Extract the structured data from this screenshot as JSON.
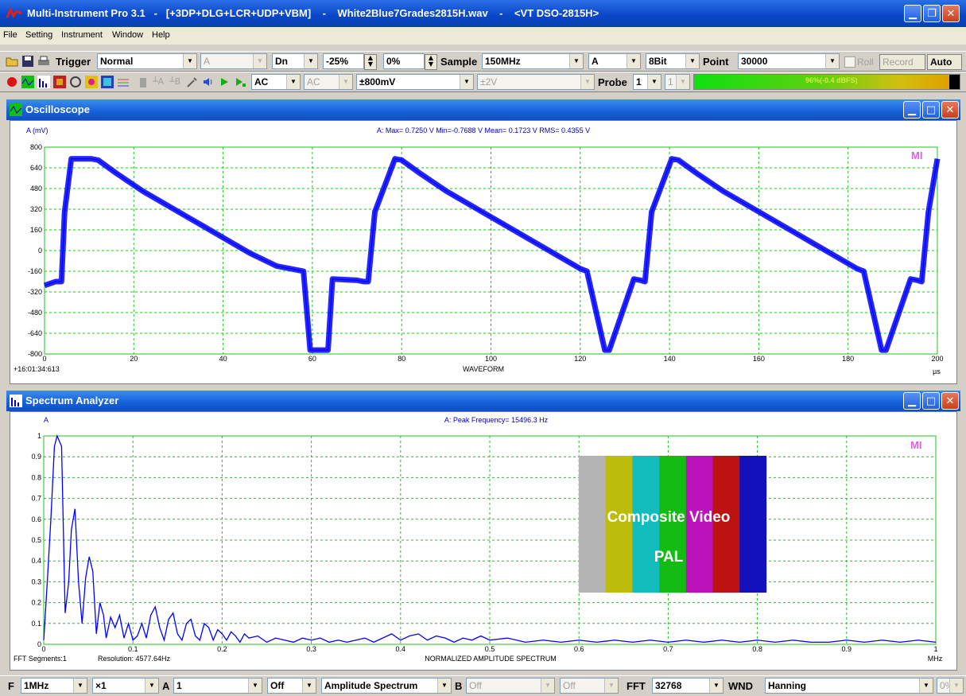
{
  "window": {
    "title": "Multi-Instrument Pro 3.1   -   [+3DP+DLG+LCR+UDP+VBM]    -    White2Blue7Grades2815H.wav    -    <VT DSO-2815H>"
  },
  "menu": [
    "File",
    "Setting",
    "Instrument",
    "Window",
    "Help"
  ],
  "toolbar1": {
    "trigger_label": "Trigger",
    "trigger_mode": "Normal",
    "trigger_channel": "A",
    "slope": "Dn",
    "trigger_position": "-25%",
    "trigger_level": "0%",
    "sample_label": "Sample",
    "sample_rate": "150MHz",
    "sample_channel": "A",
    "bits": "8Bit",
    "point_label": "Point",
    "points": "30000",
    "roll_label": "Roll",
    "record_label": "Record",
    "auto_label": "Auto"
  },
  "toolbar2": {
    "coupling_a": "AC",
    "coupling_b": "AC",
    "range_a": "±800mV",
    "range_b": "±2V",
    "probe_label": "Probe",
    "probe_a": "1",
    "probe_b": "1",
    "level_meter": {
      "text": "96%(-0.4 dBFS)",
      "fraction": 0.96
    }
  },
  "oscilloscope": {
    "title": "Oscilloscope",
    "unit_label": "A (mV)",
    "stats": "A: Max= 0.7250 V  Min=-0.7688 V  Mean= 0.1723 V  RMS= 0.4355 V",
    "timestamp": "+16:01:34:613",
    "watermark": "MI",
    "chart_data": {
      "type": "line",
      "xlabel": "WAVEFORM",
      "xunit": "µs",
      "xlim": [
        0,
        200
      ],
      "ylim": [
        -800,
        800
      ],
      "x_ticks": [
        0,
        20,
        40,
        60,
        80,
        100,
        120,
        140,
        160,
        180,
        200
      ],
      "y_ticks": [
        800,
        640,
        480,
        320,
        160,
        0,
        -160,
        -320,
        -480,
        -640,
        -800
      ],
      "grid": true,
      "series": [
        {
          "color": "#0000ff",
          "x": [
            0,
            2.5,
            3.8,
            4.5,
            6,
            10.5,
            12,
            16,
            22,
            28,
            34,
            40,
            46,
            52,
            58,
            59.5,
            63.5,
            64.5,
            70,
            71.5,
            72.5,
            74,
            78.5,
            80,
            84,
            90,
            96,
            102,
            108,
            114,
            120,
            121.5,
            125.5,
            126.5,
            132,
            133.5,
            134.5,
            136,
            140.5,
            142,
            146,
            152,
            158,
            164,
            170,
            176,
            182,
            183.5,
            187.5,
            188.5,
            194,
            195.5,
            196.5,
            198,
            200
          ],
          "y": [
            -270,
            -240,
            -240,
            300,
            710,
            710,
            700,
            600,
            460,
            340,
            220,
            100,
            -20,
            -120,
            -160,
            -770,
            -770,
            -220,
            -230,
            -240,
            -240,
            300,
            710,
            700,
            600,
            460,
            340,
            220,
            100,
            -20,
            -140,
            -160,
            -770,
            -770,
            -220,
            -230,
            -240,
            300,
            710,
            700,
            600,
            460,
            340,
            220,
            100,
            -20,
            -140,
            -160,
            -770,
            -770,
            -220,
            -230,
            -240,
            300,
            710
          ]
        }
      ]
    }
  },
  "spectrum": {
    "title": "Spectrum Analyzer",
    "unit_label": "A",
    "peak": "A: Peak Frequency= 15496.3 Hz",
    "fft_segments": "FFT Segments:1",
    "resolution": "Resolution: 4577.64Hz",
    "watermark": "MI",
    "overlay_line1": "Composite Video",
    "overlay_line2": "PAL",
    "color_bars": [
      "#b4b4b4",
      "#bcbc0c",
      "#12bcbc",
      "#12bc12",
      "#bc12bc",
      "#bc1212",
      "#1212bc"
    ],
    "chart_data": {
      "type": "line",
      "xlabel": "NORMALIZED AMPLITUDE SPECTRUM",
      "xunit": "MHz",
      "xlim": [
        0,
        1
      ],
      "ylim": [
        0,
        1
      ],
      "x_ticks": [
        0,
        0.1,
        0.2,
        0.3,
        0.4,
        0.5,
        0.6,
        0.7,
        0.8,
        0.9,
        1
      ],
      "y_ticks": [
        1,
        0.9,
        0.8,
        0.7,
        0.6,
        0.5,
        0.4,
        0.3,
        0.2,
        0.1,
        0
      ],
      "grid": true,
      "series": [
        {
          "color": "#0000ff",
          "x": [
            0,
            0.004,
            0.008,
            0.012,
            0.015,
            0.02,
            0.024,
            0.028,
            0.031,
            0.035,
            0.039,
            0.043,
            0.047,
            0.051,
            0.055,
            0.059,
            0.063,
            0.067,
            0.07,
            0.075,
            0.08,
            0.085,
            0.09,
            0.095,
            0.1,
            0.105,
            0.11,
            0.115,
            0.12,
            0.125,
            0.13,
            0.135,
            0.14,
            0.145,
            0.15,
            0.155,
            0.16,
            0.165,
            0.17,
            0.175,
            0.18,
            0.185,
            0.19,
            0.195,
            0.2,
            0.205,
            0.21,
            0.215,
            0.22,
            0.225,
            0.23,
            0.24,
            0.25,
            0.26,
            0.27,
            0.28,
            0.29,
            0.3,
            0.31,
            0.32,
            0.33,
            0.34,
            0.35,
            0.36,
            0.37,
            0.38,
            0.39,
            0.4,
            0.41,
            0.42,
            0.43,
            0.44,
            0.45,
            0.46,
            0.47,
            0.48,
            0.49,
            0.5,
            0.52,
            0.54,
            0.56,
            0.58,
            0.6,
            0.62,
            0.64,
            0.66,
            0.68,
            0.7,
            0.72,
            0.74,
            0.76,
            0.78,
            0.8,
            0.82,
            0.84,
            0.86,
            0.88,
            0.9,
            0.92,
            0.94,
            0.96,
            0.98,
            1
          ],
          "y": [
            0.02,
            0.3,
            0.6,
            0.95,
            1.0,
            0.95,
            0.15,
            0.3,
            0.55,
            0.65,
            0.3,
            0.1,
            0.32,
            0.42,
            0.35,
            0.05,
            0.2,
            0.14,
            0.03,
            0.13,
            0.08,
            0.14,
            0.03,
            0.1,
            0.02,
            0.04,
            0.1,
            0.03,
            0.14,
            0.18,
            0.08,
            0.02,
            0.12,
            0.15,
            0.05,
            0.02,
            0.1,
            0.12,
            0.04,
            0.02,
            0.1,
            0.08,
            0.02,
            0.07,
            0.05,
            0.02,
            0.06,
            0.04,
            0.01,
            0.05,
            0.03,
            0.04,
            0.01,
            0.03,
            0.02,
            0.01,
            0.03,
            0.02,
            0.03,
            0.01,
            0.02,
            0.01,
            0.02,
            0.03,
            0.01,
            0.03,
            0.05,
            0.02,
            0.04,
            0.05,
            0.02,
            0.04,
            0.03,
            0.01,
            0.03,
            0.02,
            0.04,
            0.02,
            0.03,
            0.01,
            0.02,
            0.01,
            0.02,
            0.01,
            0.02,
            0.01,
            0.02,
            0.01,
            0.02,
            0.01,
            0.02,
            0.01,
            0.02,
            0.01,
            0.02,
            0.01,
            0.01,
            0.02,
            0.01,
            0.02,
            0.01,
            0.02,
            0.01
          ]
        }
      ]
    }
  },
  "statusbar": {
    "f_label": "F",
    "freq_range": "1MHz",
    "zoom": "×1",
    "a_label": "A",
    "a_value": "1",
    "off1": "Off",
    "mode": "Amplitude Spectrum",
    "b_label": "B",
    "b_value": "Off",
    "off2": "Off",
    "fft_label": "FFT",
    "fft_size": "32768",
    "wnd_label": "WND",
    "window_fn": "Hanning",
    "overlap": "0%"
  }
}
